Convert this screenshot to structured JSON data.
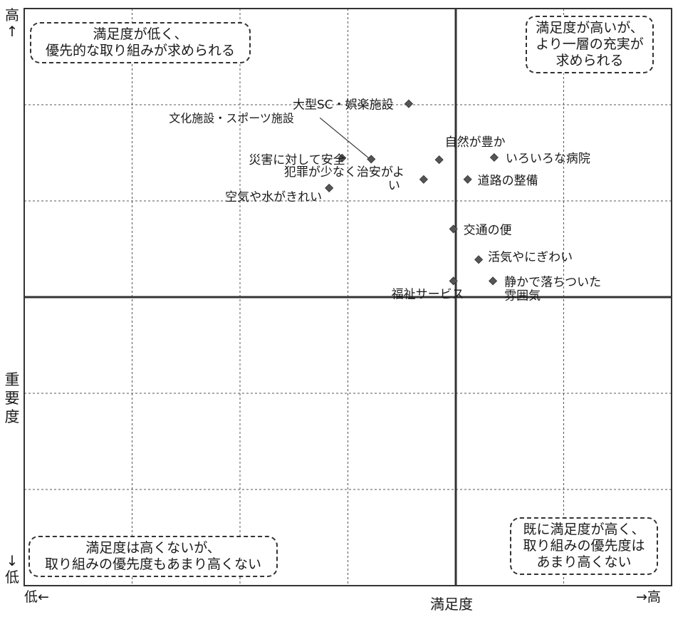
{
  "chart_data": {
    "type": "scatter",
    "xlabel": "満足度",
    "ylabel": "重要度",
    "x_low": "低←",
    "x_high": "→高",
    "y_high": [
      "高",
      "↑"
    ],
    "y_low": [
      "↓",
      "低"
    ],
    "xlim": [
      0,
      100
    ],
    "ylim": [
      0,
      100
    ],
    "grid": true,
    "points": [
      {
        "label": "大型SC・娯楽施設",
        "x": 59.4,
        "y": 83.5
      },
      {
        "label": "文化施設・スポーツ施設",
        "x": 53.6,
        "y": 73.9
      },
      {
        "label": "災害に対して安全",
        "x": 49.1,
        "y": 74.1
      },
      {
        "label": "犯罪が少なく治安がよい",
        "x": 61.7,
        "y": 70.4
      },
      {
        "label": "空気や水がきれい",
        "x": 47.1,
        "y": 68.9
      },
      {
        "label": "自然が豊か",
        "x": 64.1,
        "y": 73.8
      },
      {
        "label": "いろいろな病院",
        "x": 72.6,
        "y": 74.2
      },
      {
        "label": "道路の整備",
        "x": 68.5,
        "y": 70.4
      },
      {
        "label": "交通の便",
        "x": 66.3,
        "y": 61.8
      },
      {
        "label": "活気やにぎわい",
        "x": 70.2,
        "y": 56.5
      },
      {
        "label": "福祉サービス",
        "x": 66.3,
        "y": 52.8
      },
      {
        "label": "静かで落ちついた雰囲気",
        "x": 72.4,
        "y": 52.8
      }
    ],
    "quadrants": [
      {
        "position": "top-left",
        "lines": [
          "満足度が低く、",
          "優先的な取り組みが求められる"
        ]
      },
      {
        "position": "top-right",
        "lines": [
          "満足度が高いが、",
          "より一層の充実が",
          "求められる"
        ]
      },
      {
        "position": "bottom-left",
        "lines": [
          "満足度は高くないが、",
          "取り組みの優先度もあまり高くない"
        ]
      },
      {
        "position": "bottom-right",
        "lines": [
          "既に満足度が高く、",
          "取り組みの優先度は",
          "あまり高くない"
        ]
      }
    ],
    "colors": {
      "marker": "#555555",
      "grid": "#555555",
      "axis": "#333333"
    }
  }
}
